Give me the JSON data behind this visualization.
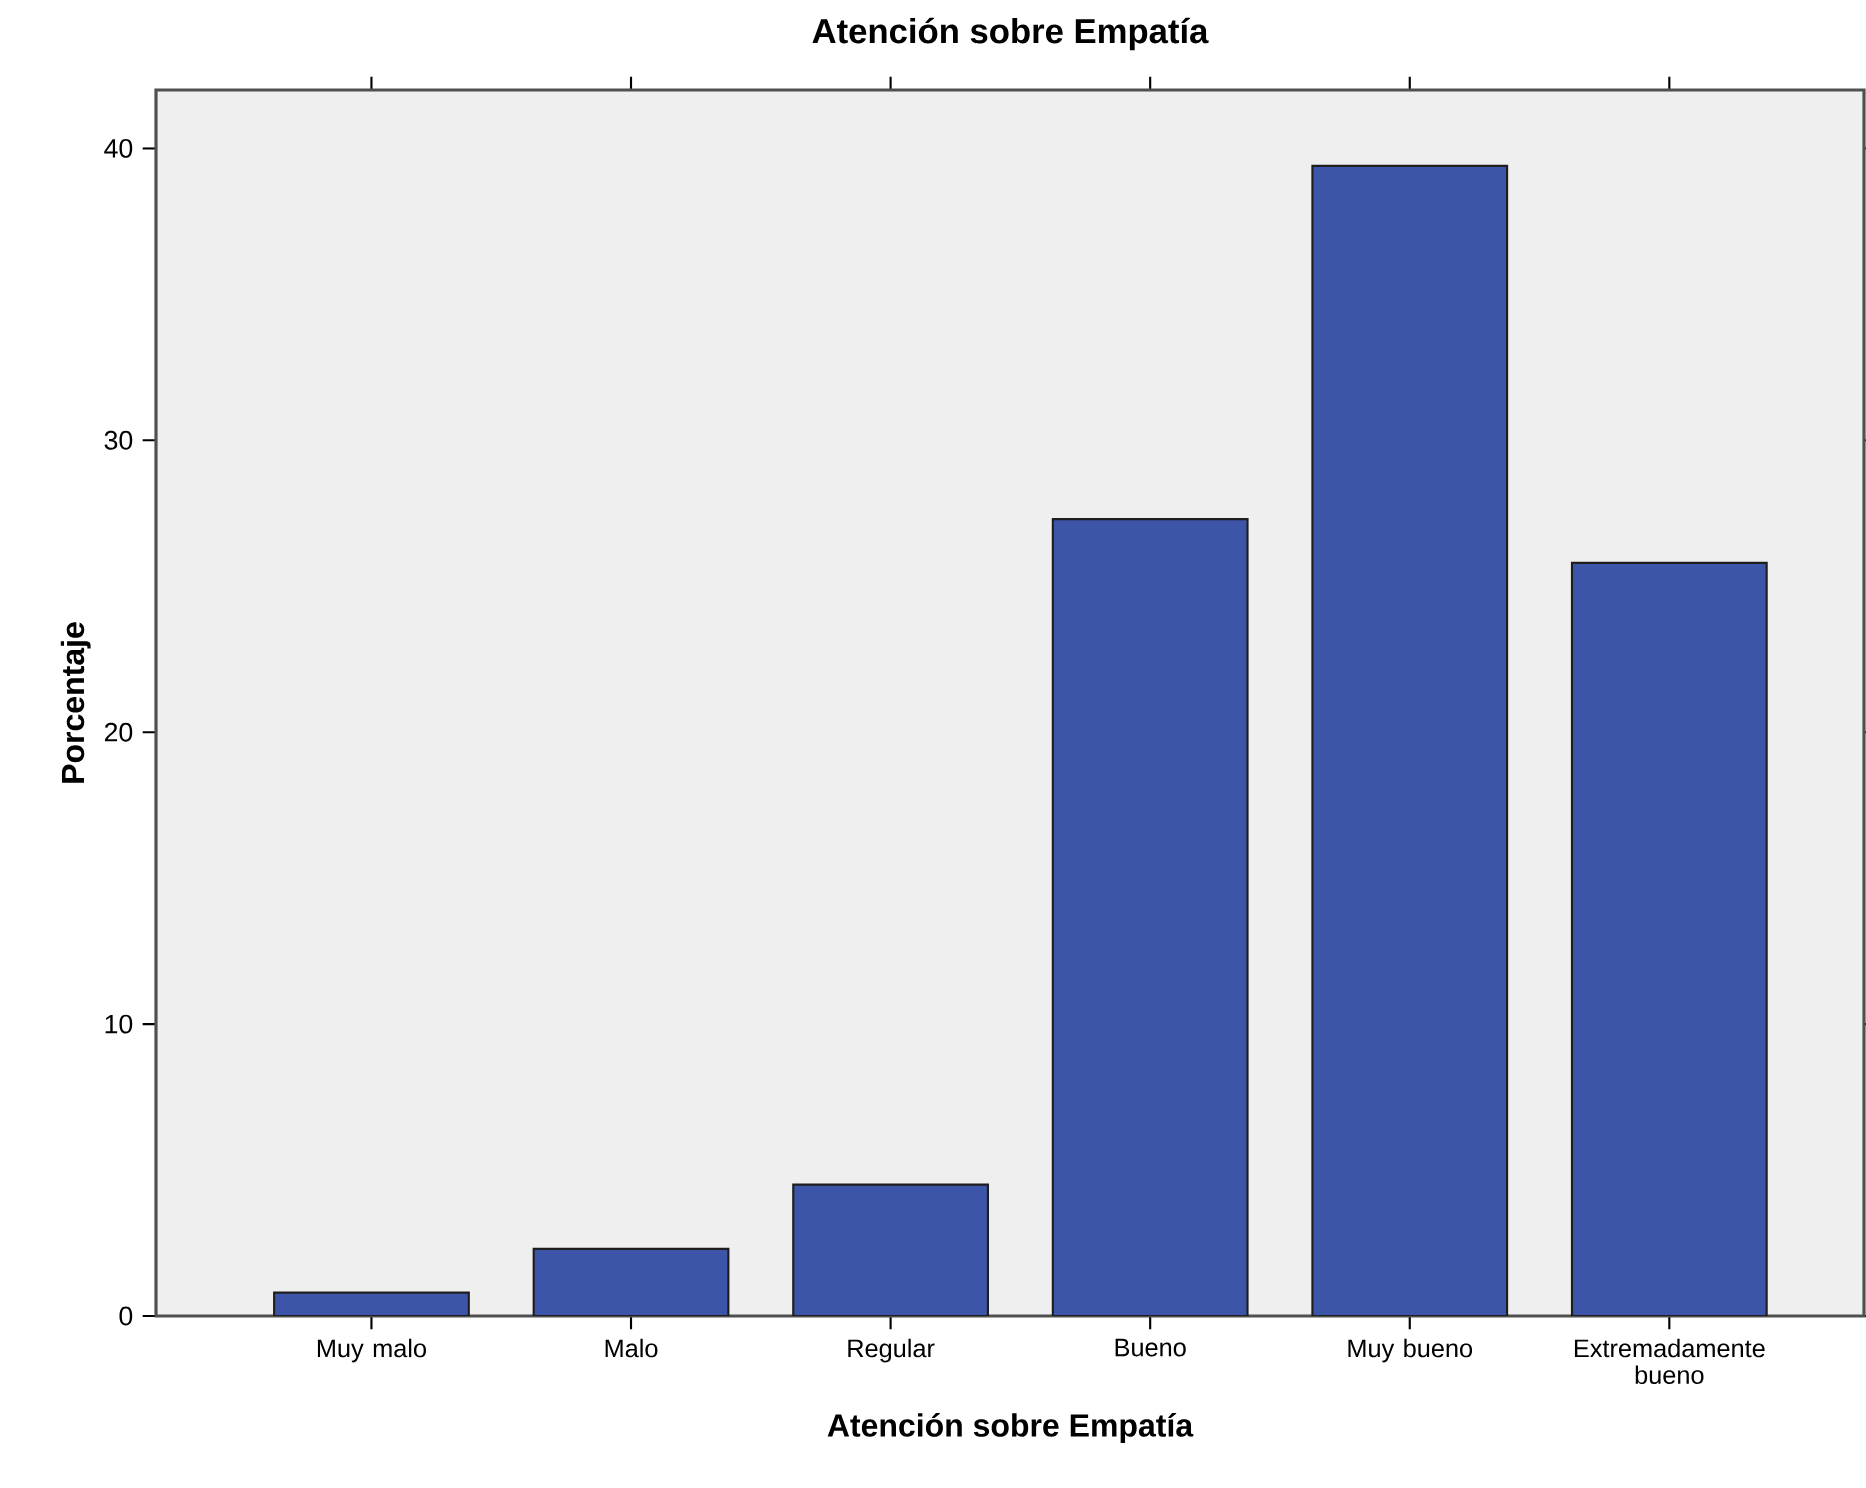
{
  "chart_data": {
    "type": "bar",
    "title": "Atención sobre Empatía",
    "xlabel": "Atención sobre Empatía",
    "ylabel": "Porcentaje",
    "categories": [
      "Muy malo",
      "Malo",
      "Regular",
      "Bueno",
      "Muy bueno",
      "Extremadamente bueno"
    ],
    "values": [
      0.8,
      2.3,
      4.5,
      27.3,
      39.4,
      25.8
    ],
    "color": "#3c55a8",
    "ylim": [
      0,
      42
    ],
    "yticks": [
      0,
      10,
      20,
      30,
      40
    ]
  }
}
